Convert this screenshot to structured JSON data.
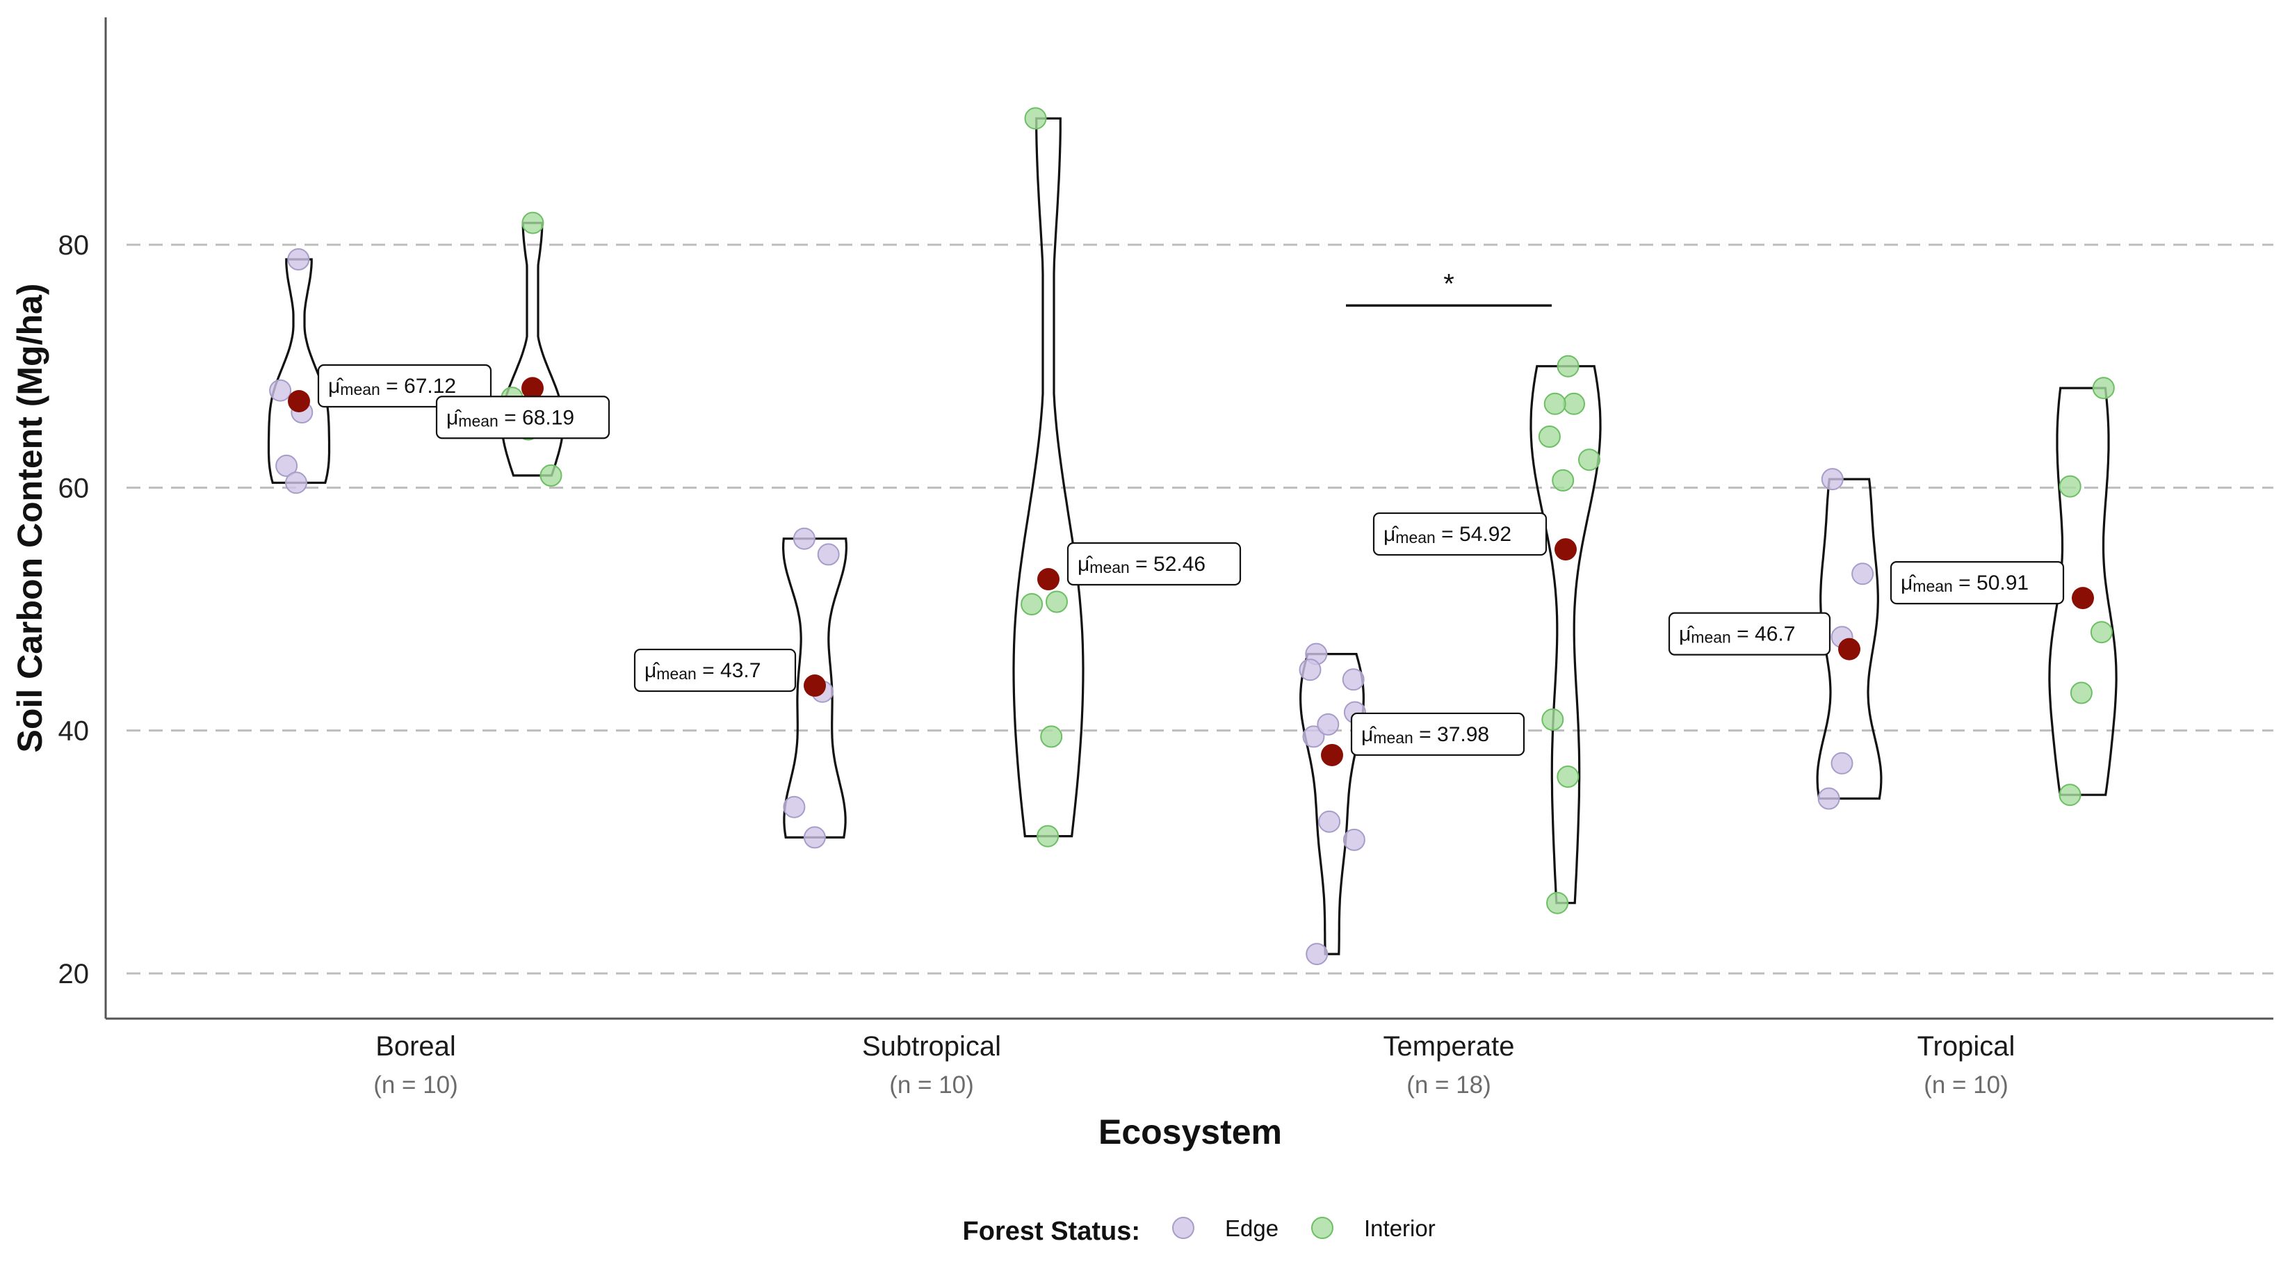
{
  "chart_data": {
    "type": "violin",
    "xlabel": "Ecosystem",
    "ylabel": "Soil Carbon Content (Mg/ha)",
    "ylim": [
      16.2,
      98
    ],
    "yticks": [
      20,
      40,
      60,
      80
    ],
    "grid": "dashed horizontal",
    "legend_placement": "bottom",
    "legend": {
      "title": "Forest Status:",
      "items": [
        {
          "label": "Edge",
          "color": "#cfc6e6",
          "stroke": "#a89cc9"
        },
        {
          "label": "Interior",
          "color": "#a8dca0",
          "stroke": "#6cbf63"
        }
      ]
    },
    "categories": [
      {
        "name": "Boreal",
        "n_label": "(n = 10)"
      },
      {
        "name": "Subtropical",
        "n_label": "(n = 10)"
      },
      {
        "name": "Temperate",
        "n_label": "(n = 18)"
      },
      {
        "name": "Tropical",
        "n_label": "(n = 10)"
      }
    ],
    "mean_color": "#8b0e04",
    "groups": [
      {
        "category": "Boreal",
        "series": "Edge",
        "mean": 67.12,
        "mean_label": "67.12",
        "points": [
          78.8,
          66.2,
          68.0,
          61.8,
          60.4
        ]
      },
      {
        "category": "Boreal",
        "series": "Interior",
        "mean": 68.19,
        "mean_label": "68.19",
        "points": [
          81.8,
          67.4,
          61.0,
          66.0,
          64.8
        ]
      },
      {
        "category": "Subtropical",
        "series": "Edge",
        "mean": 43.7,
        "mean_label": "43.7",
        "points": [
          55.8,
          54.5,
          43.2,
          33.7,
          31.2
        ]
      },
      {
        "category": "Subtropical",
        "series": "Interior",
        "mean": 52.46,
        "mean_label": "52.46",
        "points": [
          90.4,
          50.6,
          50.4,
          39.5,
          31.3
        ]
      },
      {
        "category": "Temperate",
        "series": "Edge",
        "mean": 37.98,
        "mean_label": "37.98",
        "points": [
          46.3,
          45.0,
          44.2,
          41.5,
          39.5,
          32.5,
          31.0,
          21.6,
          40.5
        ]
      },
      {
        "category": "Temperate",
        "series": "Interior",
        "mean": 54.92,
        "mean_label": "54.92",
        "points": [
          70.0,
          66.9,
          66.9,
          64.2,
          62.3,
          60.6,
          40.9,
          36.2,
          25.8
        ]
      },
      {
        "category": "Tropical",
        "series": "Edge",
        "mean": 46.7,
        "mean_label": "46.7",
        "points": [
          60.7,
          52.9,
          47.7,
          37.3,
          34.4
        ]
      },
      {
        "category": "Tropical",
        "series": "Interior",
        "mean": 50.91,
        "mean_label": "50.91",
        "points": [
          68.2,
          60.1,
          48.1,
          43.1,
          34.7
        ]
      }
    ],
    "significance": [
      {
        "category": "Temperate",
        "label": "*",
        "y": 75
      }
    ],
    "mean_symbol": "μ̂",
    "mean_subscript": "mean"
  }
}
